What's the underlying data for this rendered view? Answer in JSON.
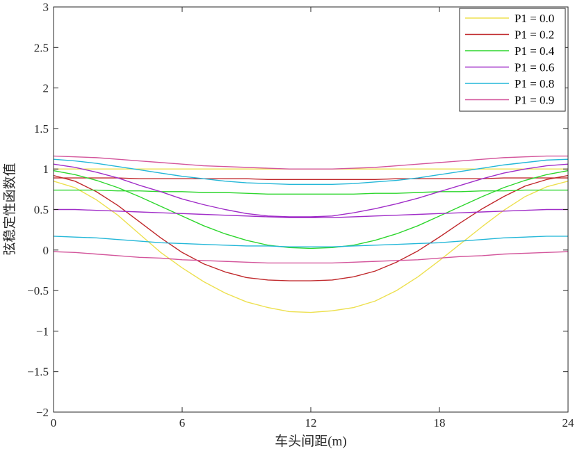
{
  "chart_data": {
    "type": "line",
    "xlabel": "车头间距(m)",
    "ylabel": "弦稳定性函数值",
    "xlim": [
      0,
      24
    ],
    "ylim": [
      -2,
      3
    ],
    "xticks": [
      0,
      6,
      12,
      18,
      24
    ],
    "yticks": [
      3,
      2.5,
      2,
      1.5,
      1,
      0.5,
      0,
      -0.5,
      -1,
      -1.5,
      -2
    ],
    "ytick_labels": [
      "3",
      "2.5",
      "2",
      "1.5",
      "1",
      "0.5",
      "0",
      "−0.5",
      "−1",
      "−1.5",
      "−2"
    ],
    "grid": false,
    "legend_position": "top-right",
    "x": [
      0,
      1,
      2,
      3,
      4,
      5,
      6,
      7,
      8,
      9,
      10,
      11,
      12,
      13,
      14,
      15,
      16,
      17,
      18,
      19,
      20,
      21,
      22,
      23,
      24
    ],
    "series": [
      {
        "name": "P1 = 0.0",
        "color": "#EDE04F",
        "values": [
          1.0,
          1.0,
          1.0,
          1.0,
          1.0,
          1.0,
          1.0,
          1.0,
          1.0,
          1.0,
          1.0,
          1.0,
          1.0,
          1.0,
          1.0,
          1.0,
          1.0,
          1.0,
          1.0,
          1.0,
          1.0,
          1.0,
          1.0,
          1.0,
          1.0
        ]
      },
      {
        "name": "P1 = 0.0",
        "color": "#EDE04F",
        "values": [
          0.85,
          0.77,
          0.62,
          0.43,
          0.2,
          -0.03,
          -0.22,
          -0.39,
          -0.53,
          -0.64,
          -0.71,
          -0.76,
          -0.77,
          -0.75,
          -0.71,
          -0.63,
          -0.5,
          -0.33,
          -0.13,
          0.08,
          0.29,
          0.49,
          0.66,
          0.78,
          0.85
        ]
      },
      {
        "name": "P1 = 0.2",
        "color": "#C0282B",
        "values": [
          0.89,
          0.89,
          0.89,
          0.89,
          0.88,
          0.88,
          0.88,
          0.88,
          0.88,
          0.88,
          0.87,
          0.87,
          0.87,
          0.87,
          0.87,
          0.87,
          0.88,
          0.88,
          0.88,
          0.88,
          0.88,
          0.89,
          0.89,
          0.89,
          0.89
        ]
      },
      {
        "name": "P1 = 0.2",
        "color": "#C0282B",
        "values": [
          0.92,
          0.85,
          0.72,
          0.55,
          0.35,
          0.15,
          -0.03,
          -0.17,
          -0.27,
          -0.34,
          -0.37,
          -0.38,
          -0.38,
          -0.37,
          -0.33,
          -0.26,
          -0.15,
          -0.01,
          0.16,
          0.34,
          0.51,
          0.66,
          0.79,
          0.87,
          0.92
        ]
      },
      {
        "name": "P1 = 0.4",
        "color": "#2DD62D",
        "values": [
          0.74,
          0.74,
          0.74,
          0.73,
          0.73,
          0.72,
          0.72,
          0.71,
          0.71,
          0.7,
          0.69,
          0.69,
          0.69,
          0.69,
          0.69,
          0.7,
          0.7,
          0.71,
          0.72,
          0.72,
          0.73,
          0.73,
          0.74,
          0.74,
          0.74
        ]
      },
      {
        "name": "P1 = 0.4",
        "color": "#2DD62D",
        "values": [
          0.98,
          0.93,
          0.86,
          0.77,
          0.66,
          0.54,
          0.42,
          0.3,
          0.2,
          0.12,
          0.06,
          0.03,
          0.02,
          0.03,
          0.06,
          0.12,
          0.2,
          0.3,
          0.42,
          0.54,
          0.66,
          0.77,
          0.86,
          0.93,
          0.98
        ]
      },
      {
        "name": "P1 = 0.6",
        "color": "#A02DC8",
        "values": [
          1.06,
          1.02,
          0.96,
          0.89,
          0.8,
          0.72,
          0.63,
          0.56,
          0.5,
          0.45,
          0.42,
          0.41,
          0.41,
          0.42,
          0.46,
          0.51,
          0.57,
          0.64,
          0.72,
          0.8,
          0.88,
          0.95,
          1.0,
          1.04,
          1.06
        ]
      },
      {
        "name": "P1 = 0.6",
        "color": "#A02DC8",
        "values": [
          0.5,
          0.5,
          0.49,
          0.48,
          0.47,
          0.46,
          0.45,
          0.44,
          0.43,
          0.42,
          0.41,
          0.4,
          0.4,
          0.4,
          0.41,
          0.42,
          0.43,
          0.44,
          0.45,
          0.46,
          0.47,
          0.48,
          0.49,
          0.5,
          0.5
        ]
      },
      {
        "name": "P1 = 0.8",
        "color": "#23B7D8",
        "values": [
          1.12,
          1.1,
          1.07,
          1.03,
          0.99,
          0.95,
          0.91,
          0.88,
          0.85,
          0.83,
          0.82,
          0.81,
          0.81,
          0.81,
          0.82,
          0.84,
          0.86,
          0.89,
          0.93,
          0.97,
          1.01,
          1.05,
          1.08,
          1.11,
          1.12
        ]
      },
      {
        "name": "P1 = 0.8",
        "color": "#23B7D8",
        "values": [
          0.17,
          0.16,
          0.15,
          0.13,
          0.11,
          0.09,
          0.08,
          0.07,
          0.06,
          0.05,
          0.05,
          0.04,
          0.04,
          0.04,
          0.05,
          0.06,
          0.07,
          0.08,
          0.09,
          0.11,
          0.13,
          0.15,
          0.16,
          0.17,
          0.17
        ]
      },
      {
        "name": "P1 = 0.9",
        "color": "#D3559B",
        "values": [
          1.16,
          1.15,
          1.14,
          1.12,
          1.1,
          1.08,
          1.06,
          1.04,
          1.03,
          1.02,
          1.01,
          1.0,
          1.0,
          1.0,
          1.01,
          1.02,
          1.04,
          1.06,
          1.08,
          1.1,
          1.12,
          1.14,
          1.15,
          1.16,
          1.16
        ]
      },
      {
        "name": "P1 = 0.9",
        "color": "#D3559B",
        "values": [
          -0.02,
          -0.03,
          -0.05,
          -0.07,
          -0.09,
          -0.1,
          -0.12,
          -0.13,
          -0.14,
          -0.15,
          -0.16,
          -0.16,
          -0.16,
          -0.16,
          -0.15,
          -0.14,
          -0.13,
          -0.12,
          -0.1,
          -0.08,
          -0.07,
          -0.05,
          -0.04,
          -0.03,
          -0.02
        ]
      }
    ],
    "legend": [
      {
        "label": "P1 = 0.0",
        "color": "#EDE04F"
      },
      {
        "label": "P1 = 0.2",
        "color": "#C0282B"
      },
      {
        "label": "P1 = 0.4",
        "color": "#2DD62D"
      },
      {
        "label": "P1 = 0.6",
        "color": "#A02DC8"
      },
      {
        "label": "P1 = 0.8",
        "color": "#23B7D8"
      },
      {
        "label": "P1 = 0.9",
        "color": "#D3559B"
      }
    ]
  }
}
